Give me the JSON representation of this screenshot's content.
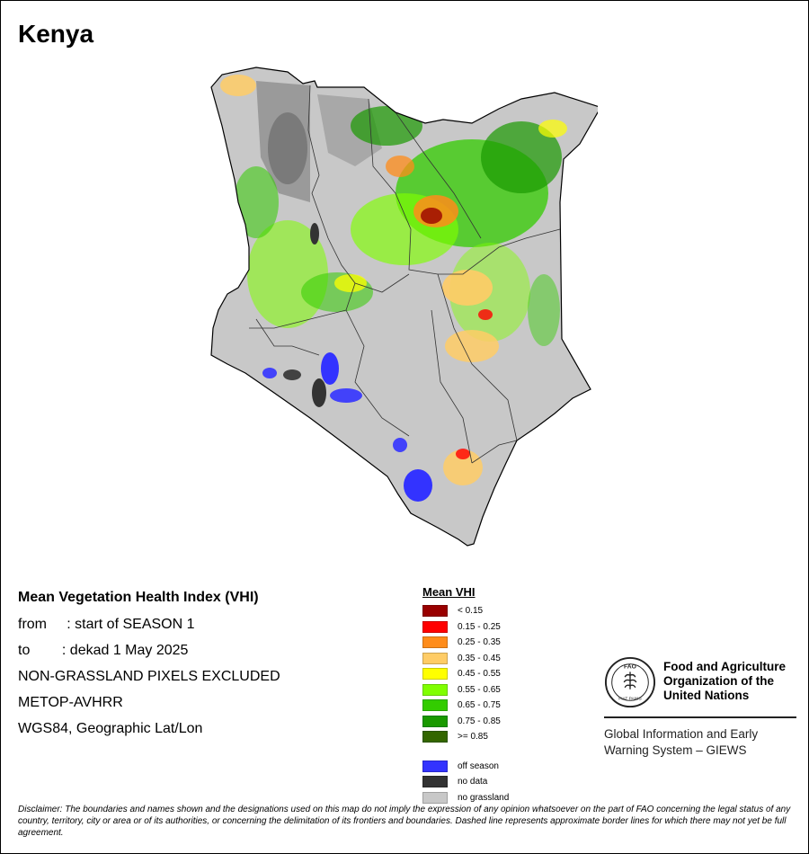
{
  "map_title": "Kenya",
  "info": {
    "heading": "Mean Vegetation Health Index (VHI)",
    "from_line": "from     : start of SEASON 1",
    "to_line": "to        : dekad 1 May 2025",
    "exclusion": "NON-GRASSLAND PIXELS EXCLUDED",
    "sensor": "METOP-AVHRR",
    "projection": "WGS84, Geographic Lat/Lon"
  },
  "legend": {
    "title": "Mean VHI",
    "classes": [
      {
        "label": "< 0.15",
        "color": "#990000"
      },
      {
        "label": "0.15 - 0.25",
        "color": "#ff0000"
      },
      {
        "label": "0.25 - 0.35",
        "color": "#ff8c1a"
      },
      {
        "label": "0.35 - 0.45",
        "color": "#ffcc66"
      },
      {
        "label": "0.45 - 0.55",
        "color": "#ffff00"
      },
      {
        "label": "0.55 - 0.65",
        "color": "#80ff00"
      },
      {
        "label": "0.65 - 0.75",
        "color": "#33cc00"
      },
      {
        "label": "0.75 - 0.85",
        "color": "#1a9900"
      },
      {
        "label": ">= 0.85",
        "color": "#336600"
      }
    ],
    "other": [
      {
        "label": "off season",
        "color": "#3333ff"
      },
      {
        "label": "no data",
        "color": "#333333"
      },
      {
        "label": "no grassland",
        "color": "#c8c8c8"
      }
    ]
  },
  "organization": {
    "name_line1": "Food and Agriculture",
    "name_line2": "Organization of the",
    "name_line3": "United Nations",
    "system_line1": "Global Information and Early",
    "system_line2": "Warning System – GIEWS",
    "logo_text": "FAO",
    "motto": "FIAT PANIS"
  },
  "disclaimer": {
    "label": "Disclaimer:",
    "text": " The boundaries and names shown and the designations used on this map do not imply the expression of any opinion whatsoever on the part of FAO concerning the legal status of any country, territory, city or area or of its authorities, or concerning the delimitation of its frontiers and boundaries. Dashed line represents approximate border lines for which there may not yet be full agreement."
  }
}
